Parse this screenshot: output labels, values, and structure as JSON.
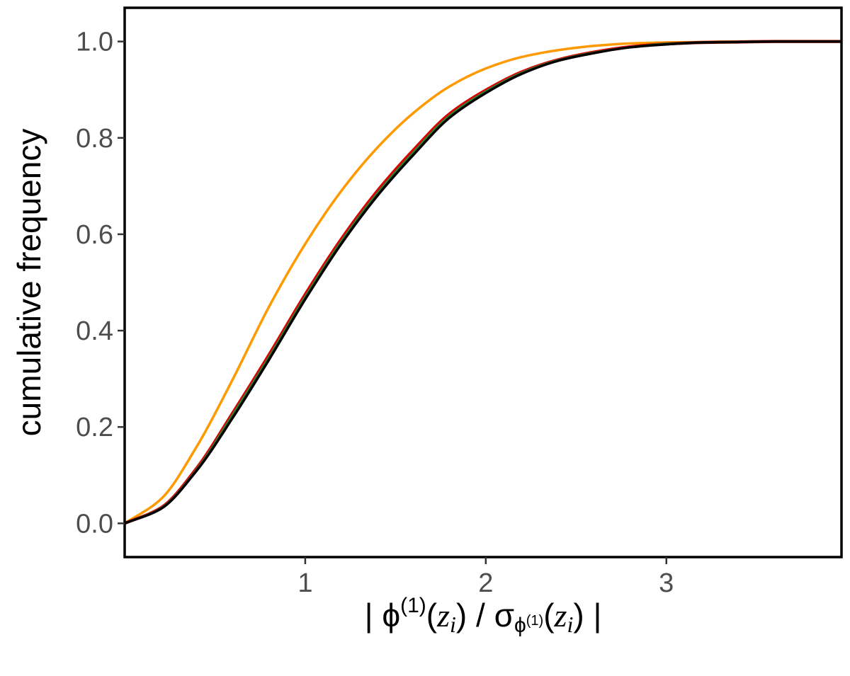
{
  "chart_data": {
    "type": "line",
    "title": "",
    "xlabel_parts": {
      "bar_left": "| ",
      "phi": "ϕ",
      "sup": "(1)",
      "open": "(",
      "z": "z",
      "i": "i",
      "close_slash": ") / ",
      "sigma": "σ",
      "sub_phi": "ϕ",
      "sub_sup": "(1)",
      "open2": "(",
      "z2": "z",
      "i2": "i",
      "close2": ")",
      "bar_right": " |"
    },
    "ylabel": "cumulative frequency",
    "xlim": [
      0.0,
      3.97
    ],
    "ylim": [
      -0.07,
      1.07
    ],
    "xticks": [
      1,
      2,
      3
    ],
    "xtick_labels": [
      "1",
      "2",
      "3"
    ],
    "yticks": [
      0.0,
      0.2,
      0.4,
      0.6,
      0.8,
      1.0
    ],
    "ytick_labels": [
      "0.0",
      "0.2",
      "0.4",
      "0.6",
      "0.8",
      "1.0"
    ],
    "grid": false,
    "legend": "none",
    "x": [
      0.0,
      0.2,
      0.4,
      0.6,
      0.8,
      1.0,
      1.2,
      1.4,
      1.6,
      1.8,
      2.0,
      2.2,
      2.4,
      2.6,
      2.8,
      3.0,
      3.2,
      3.4,
      3.6,
      3.8,
      3.97
    ],
    "series": [
      {
        "color": "#ff9900",
        "values": [
          0.0,
          0.05,
          0.16,
          0.3,
          0.45,
          0.58,
          0.69,
          0.78,
          0.852,
          0.907,
          0.944,
          0.968,
          0.982,
          0.991,
          0.996,
          0.998,
          0.999,
          1.0,
          1.0,
          1.0,
          1.0
        ]
      },
      {
        "color": "#dd0000",
        "values": [
          0.0,
          0.032,
          0.115,
          0.23,
          0.35,
          0.475,
          0.59,
          0.69,
          0.775,
          0.85,
          0.899,
          0.937,
          0.962,
          0.978,
          0.989,
          0.995,
          0.998,
          0.999,
          1.0,
          1.0,
          1.0
        ]
      },
      {
        "color": "#2e7d32",
        "values": [
          0.0,
          0.031,
          0.112,
          0.226,
          0.345,
          0.47,
          0.585,
          0.685,
          0.77,
          0.846,
          0.896,
          0.935,
          0.961,
          0.977,
          0.988,
          0.995,
          0.998,
          0.999,
          1.0,
          1.0,
          1.0
        ]
      },
      {
        "color": "#000000",
        "values": [
          0.0,
          0.03,
          0.11,
          0.22,
          0.34,
          0.465,
          0.58,
          0.68,
          0.765,
          0.842,
          0.893,
          0.933,
          0.96,
          0.976,
          0.988,
          0.994,
          0.998,
          0.999,
          1.0,
          1.0,
          1.0
        ]
      }
    ]
  }
}
